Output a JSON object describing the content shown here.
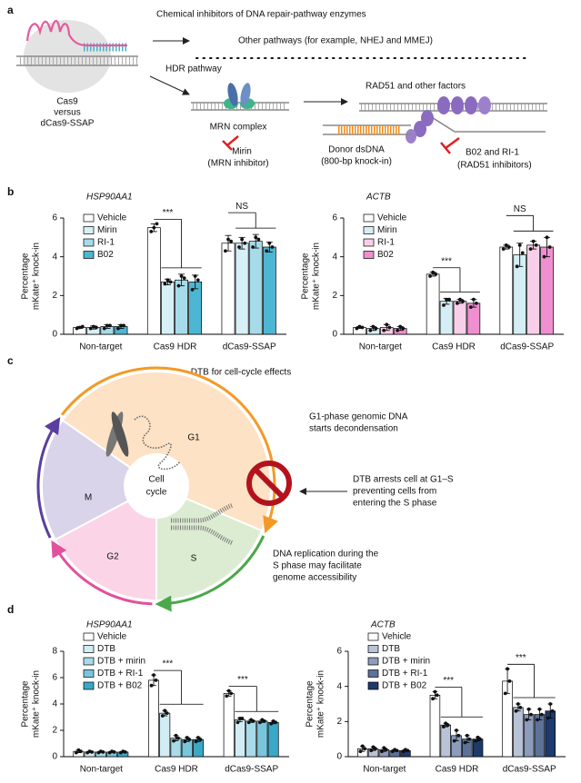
{
  "panel_labels": [
    "a",
    "b",
    "c",
    "d"
  ],
  "panel_a": {
    "title": "Chemical inhibitors of DNA repair-pathway enzymes",
    "other_pathways": "Other pathways (for example, NHEJ and MMEJ)",
    "hdr": "HDR pathway",
    "nuclease": [
      "Cas9",
      "versus",
      "dCas9-SSAP"
    ],
    "mrn": "MRN complex",
    "mirin": [
      "Mirin",
      "(MRN inhibitor)"
    ],
    "rad51": "RAD51 and other factors",
    "donor": [
      "Donor dsDNA",
      "(800-bp knock-in)"
    ],
    "rad51_inhibitors": [
      "B02 and RI-1",
      "(RAD51 inhibitors)"
    ]
  },
  "panel_c": {
    "title": "DTB for cell-cycle effects",
    "phases": [
      "G1",
      "S",
      "G2",
      "M"
    ],
    "center": [
      "Cell",
      "cycle"
    ],
    "g1_note": [
      "G1-phase genomic DNA",
      "starts decondensation"
    ],
    "dtb_note": [
      "DTB arrests cell at G1–S",
      "preventing cells from",
      "entering the S phase"
    ],
    "s_note": [
      "DNA replication during the",
      "S phase may facilitate",
      "genome accessibility"
    ]
  },
  "chart_data": [
    {
      "type": "bar",
      "title": "HSP90AA1",
      "ylabel": [
        "Percentage",
        "mKate⁺ knock-in"
      ],
      "categories": [
        "Non-target",
        "Cas9 HDR",
        "dCas9-SSAP"
      ],
      "ylim": [
        0,
        6
      ],
      "yticks": [
        0,
        2,
        4,
        6
      ],
      "legend": "upper left",
      "significance": [
        null,
        "***",
        "NS"
      ],
      "series": [
        {
          "name": "Vehicle",
          "color": "#ffffff",
          "values": [
            0.35,
            5.5,
            4.7
          ],
          "errors": [
            0.05,
            0.2,
            0.4
          ],
          "points": [
            [
              0.3,
              0.35,
              0.4
            ],
            [
              5.3,
              5.5,
              5.7
            ],
            [
              4.3,
              4.9,
              4.8
            ]
          ]
        },
        {
          "name": "Mirin",
          "color": "#d7eff6",
          "values": [
            0.35,
            2.7,
            4.7
          ],
          "errors": [
            0.08,
            0.15,
            0.3
          ],
          "points": [
            [
              0.3,
              0.4,
              0.35
            ],
            [
              2.6,
              2.8,
              2.7
            ],
            [
              4.5,
              4.9,
              4.7
            ]
          ]
        },
        {
          "name": "RI-1",
          "color": "#a6dbe9",
          "values": [
            0.4,
            2.8,
            4.8
          ],
          "errors": [
            0.1,
            0.3,
            0.35
          ],
          "points": [
            [
              0.3,
              0.45,
              0.45
            ],
            [
              2.5,
              3.0,
              2.9
            ],
            [
              4.5,
              5.0,
              4.9
            ]
          ]
        },
        {
          "name": "B02",
          "color": "#4db6d2",
          "values": [
            0.4,
            2.7,
            4.5
          ],
          "errors": [
            0.1,
            0.35,
            0.25
          ],
          "points": [
            [
              0.3,
              0.45,
              0.45
            ],
            [
              2.3,
              3.0,
              2.8
            ],
            [
              4.3,
              4.7,
              4.5
            ]
          ]
        }
      ]
    },
    {
      "type": "bar",
      "title": "ACTB",
      "ylabel": [
        "Percentage",
        "mKate⁺ knock-in"
      ],
      "categories": [
        "Non-target",
        "Cas9 HDR",
        "dCas9-SSAP"
      ],
      "ylim": [
        0,
        6
      ],
      "yticks": [
        0,
        2,
        4,
        6
      ],
      "legend": "upper left",
      "significance": [
        null,
        "***",
        "NS"
      ],
      "series": [
        {
          "name": "Vehicle",
          "color": "#ffffff",
          "values": [
            0.35,
            3.1,
            4.5
          ],
          "errors": [
            0.05,
            0.1,
            0.1
          ],
          "points": [
            [
              0.3,
              0.4,
              0.35
            ],
            [
              3.0,
              3.2,
              3.1
            ],
            [
              4.4,
              4.6,
              4.5
            ]
          ]
        },
        {
          "name": "Mirin",
          "color": "#d5eef5",
          "values": [
            0.3,
            1.7,
            4.1
          ],
          "errors": [
            0.1,
            0.15,
            0.6
          ],
          "points": [
            [
              0.2,
              0.4,
              0.3
            ],
            [
              1.5,
              1.8,
              1.8
            ],
            [
              3.5,
              4.6,
              4.2
            ]
          ]
        },
        {
          "name": "RI-1",
          "color": "#f8cfe9",
          "values": [
            0.35,
            1.7,
            4.6
          ],
          "errors": [
            0.15,
            0.1,
            0.2
          ],
          "points": [
            [
              0.2,
              0.5,
              0.35
            ],
            [
              1.6,
              1.8,
              1.7
            ],
            [
              4.4,
              4.8,
              4.6
            ]
          ]
        },
        {
          "name": "B02",
          "color": "#ef8fd0",
          "values": [
            0.3,
            1.6,
            4.5
          ],
          "errors": [
            0.1,
            0.2,
            0.5
          ],
          "points": [
            [
              0.2,
              0.4,
              0.3
            ],
            [
              1.4,
              1.8,
              1.6
            ],
            [
              4.0,
              5.0,
              4.5
            ]
          ]
        }
      ]
    },
    {
      "type": "bar",
      "title": "HSP90AA1",
      "ylabel": [
        "Percentage",
        "mKate⁺ knock-in"
      ],
      "categories": [
        "Non-target",
        "Cas9 HDR",
        "dCas9-SSAP"
      ],
      "ylim": [
        0,
        8
      ],
      "yticks": [
        0,
        2,
        4,
        6,
        8
      ],
      "legend": "upper left",
      "significance": [
        null,
        "***",
        "***"
      ],
      "series": [
        {
          "name": "Vehicle",
          "color": "#ffffff",
          "values": [
            0.4,
            5.8,
            4.8
          ],
          "errors": [
            0.1,
            0.4,
            0.2
          ],
          "points": [
            [
              0.3,
              0.5,
              0.4
            ],
            [
              5.4,
              6.2,
              5.8
            ],
            [
              4.6,
              5.0,
              4.8
            ]
          ]
        },
        {
          "name": "DTB",
          "color": "#d2ecf4",
          "values": [
            0.35,
            3.3,
            2.8
          ],
          "errors": [
            0.05,
            0.2,
            0.15
          ],
          "points": [
            [
              0.3,
              0.4,
              0.35
            ],
            [
              3.1,
              3.5,
              3.3
            ],
            [
              2.6,
              2.9,
              2.9
            ]
          ]
        },
        {
          "name": "DTB + mirin",
          "color": "#a7dbe8",
          "values": [
            0.35,
            1.4,
            2.7
          ],
          "errors": [
            0.05,
            0.2,
            0.1
          ],
          "points": [
            [
              0.3,
              0.4,
              0.35
            ],
            [
              1.2,
              1.6,
              1.4
            ],
            [
              2.6,
              2.8,
              2.7
            ]
          ]
        },
        {
          "name": "DTB + RI-1",
          "color": "#79c6dc",
          "values": [
            0.35,
            1.3,
            2.7
          ],
          "errors": [
            0.05,
            0.15,
            0.1
          ],
          "points": [
            [
              0.3,
              0.4,
              0.35
            ],
            [
              1.15,
              1.45,
              1.3
            ],
            [
              2.6,
              2.8,
              2.7
            ]
          ]
        },
        {
          "name": "DTB + B02",
          "color": "#3aa8c7",
          "values": [
            0.35,
            1.3,
            2.6
          ],
          "errors": [
            0.05,
            0.15,
            0.1
          ],
          "points": [
            [
              0.3,
              0.4,
              0.35
            ],
            [
              1.15,
              1.45,
              1.3
            ],
            [
              2.5,
              2.7,
              2.6
            ]
          ]
        }
      ]
    },
    {
      "type": "bar",
      "title": "ACTB",
      "ylabel": [
        "Percentage",
        "mKate⁺ knock-in"
      ],
      "categories": [
        "Non-target",
        "Cas9 HDR",
        "dCas9-SSAP"
      ],
      "ylim": [
        0,
        6
      ],
      "yticks": [
        0,
        2,
        4,
        6
      ],
      "legend": "upper left",
      "significance": [
        null,
        "***",
        "***"
      ],
      "series": [
        {
          "name": "Vehicle",
          "color": "#ffffff",
          "values": [
            0.45,
            3.5,
            4.3
          ],
          "errors": [
            0.15,
            0.2,
            0.7
          ],
          "points": [
            [
              0.3,
              0.6,
              0.45
            ],
            [
              3.3,
              3.7,
              3.5
            ],
            [
              3.6,
              5.0,
              4.3
            ]
          ]
        },
        {
          "name": "DTB",
          "color": "#b9c3d7",
          "values": [
            0.45,
            1.8,
            2.8
          ],
          "errors": [
            0.1,
            0.1,
            0.2
          ],
          "points": [
            [
              0.35,
              0.55,
              0.45
            ],
            [
              1.7,
              1.9,
              1.8
            ],
            [
              2.6,
              3.0,
              2.8
            ]
          ]
        },
        {
          "name": "DTB + mirin",
          "color": "#8c9cba",
          "values": [
            0.4,
            1.2,
            2.4
          ],
          "errors": [
            0.1,
            0.3,
            0.3
          ],
          "points": [
            [
              0.3,
              0.5,
              0.4
            ],
            [
              0.9,
              1.5,
              1.2
            ],
            [
              2.1,
              2.7,
              2.4
            ]
          ]
        },
        {
          "name": "DTB + RI-1",
          "color": "#5d7299",
          "values": [
            0.35,
            1.0,
            2.4
          ],
          "errors": [
            0.05,
            0.2,
            0.3
          ],
          "points": [
            [
              0.3,
              0.4,
              0.35
            ],
            [
              0.8,
              1.2,
              1.0
            ],
            [
              2.1,
              2.7,
              2.4
            ]
          ]
        },
        {
          "name": "DTB + B02",
          "color": "#1d3a6d",
          "values": [
            0.35,
            1.0,
            2.6
          ],
          "errors": [
            0.05,
            0.1,
            0.4
          ],
          "points": [
            [
              0.3,
              0.4,
              0.35
            ],
            [
              0.9,
              1.1,
              1.0
            ],
            [
              2.2,
              3.0,
              2.6
            ]
          ]
        }
      ]
    }
  ]
}
